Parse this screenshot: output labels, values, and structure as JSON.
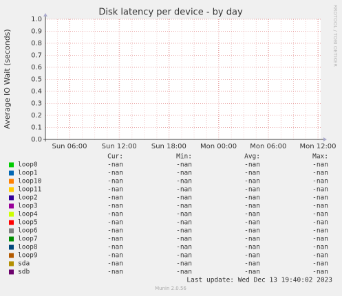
{
  "chart_data": {
    "type": "line",
    "title": "Disk latency per device - by day",
    "ylabel": "Average IO Wait (seconds)",
    "side_text": "RRDTOOL / TOBI OETIKER",
    "ylim": [
      0,
      1
    ],
    "yticks": [
      {
        "value": 0,
        "label": "0.0"
      },
      {
        "value": 0.1,
        "label": "0.1"
      },
      {
        "value": 0.2,
        "label": "0.2"
      },
      {
        "value": 0.3,
        "label": "0.3"
      },
      {
        "value": 0.4,
        "label": "0.4"
      },
      {
        "value": 0.5,
        "label": "0.5"
      },
      {
        "value": 0.6,
        "label": "0.6"
      },
      {
        "value": 0.7,
        "label": "0.7"
      },
      {
        "value": 0.8,
        "label": "0.8"
      },
      {
        "value": 0.9,
        "label": "0.9"
      },
      {
        "value": 1,
        "label": "1.0"
      }
    ],
    "xticks": [
      "Sun 06:00",
      "Sun 12:00",
      "Sun 18:00",
      "Mon 00:00",
      "Mon 06:00",
      "Mon 12:00"
    ],
    "grid": true,
    "legend_columns": [
      "Cur:",
      "Min:",
      "Avg:",
      "Max:"
    ],
    "series": [
      {
        "name": "loop0",
        "color": "#00cc00",
        "stats": [
          "-nan",
          "-nan",
          "-nan",
          "-nan"
        ]
      },
      {
        "name": "loop1",
        "color": "#0066b3",
        "stats": [
          "-nan",
          "-nan",
          "-nan",
          "-nan"
        ]
      },
      {
        "name": "loop10",
        "color": "#ff8000",
        "stats": [
          "-nan",
          "-nan",
          "-nan",
          "-nan"
        ]
      },
      {
        "name": "loop11",
        "color": "#ffcc00",
        "stats": [
          "-nan",
          "-nan",
          "-nan",
          "-nan"
        ]
      },
      {
        "name": "loop2",
        "color": "#330099",
        "stats": [
          "-nan",
          "-nan",
          "-nan",
          "-nan"
        ]
      },
      {
        "name": "loop3",
        "color": "#990099",
        "stats": [
          "-nan",
          "-nan",
          "-nan",
          "-nan"
        ]
      },
      {
        "name": "loop4",
        "color": "#ccff00",
        "stats": [
          "-nan",
          "-nan",
          "-nan",
          "-nan"
        ]
      },
      {
        "name": "loop5",
        "color": "#ff0000",
        "stats": [
          "-nan",
          "-nan",
          "-nan",
          "-nan"
        ]
      },
      {
        "name": "loop6",
        "color": "#808080",
        "stats": [
          "-nan",
          "-nan",
          "-nan",
          "-nan"
        ]
      },
      {
        "name": "loop7",
        "color": "#008f00",
        "stats": [
          "-nan",
          "-nan",
          "-nan",
          "-nan"
        ]
      },
      {
        "name": "loop8",
        "color": "#00487d",
        "stats": [
          "-nan",
          "-nan",
          "-nan",
          "-nan"
        ]
      },
      {
        "name": "loop9",
        "color": "#b35a00",
        "stats": [
          "-nan",
          "-nan",
          "-nan",
          "-nan"
        ]
      },
      {
        "name": "sda",
        "color": "#b38f00",
        "stats": [
          "-nan",
          "-nan",
          "-nan",
          "-nan"
        ]
      },
      {
        "name": "sdb",
        "color": "#6b006b",
        "stats": [
          "-nan",
          "-nan",
          "-nan",
          "-nan"
        ]
      }
    ],
    "footer": "Last update: Wed Dec 13 19:40:02 2023",
    "version": "Munin 2.0.56"
  }
}
